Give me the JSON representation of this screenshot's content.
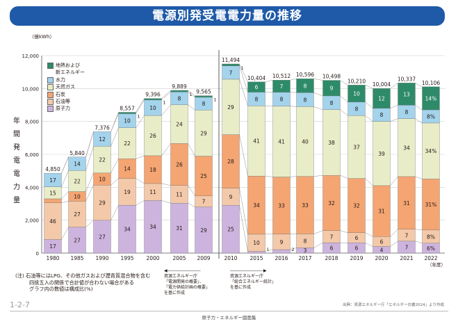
{
  "header": {
    "title": "電源別発受電電力量の推移"
  },
  "chart_data": {
    "type": "bar",
    "stacked": true,
    "unit_label": "（億kWh）",
    "ylabel_vertical": [
      "年",
      "間",
      "発",
      "電",
      "電",
      "力",
      "量"
    ],
    "xlabel": "（年度）",
    "ylim": [
      0,
      12000
    ],
    "yticks": [
      "0",
      "2,000",
      "4,000",
      "6,000",
      "8,000",
      "10,000",
      "12,000"
    ],
    "grid": true,
    "legend_position": "top-left",
    "series": [
      {
        "key": "nuclear",
        "name": "原子力",
        "color": "#cdb4de"
      },
      {
        "key": "oil",
        "name": "石油等",
        "color": "#f3c9aa"
      },
      {
        "key": "coal",
        "name": "石炭",
        "color": "#f4a572"
      },
      {
        "key": "gas",
        "name": "天然ガス",
        "color": "#e8edc8"
      },
      {
        "key": "hydro",
        "name": "水力",
        "color": "#a4d3ec"
      },
      {
        "key": "geo",
        "name": "地熱および\n新エネルギー",
        "color": "#2e8b6a"
      }
    ],
    "categories": [
      {
        "year": "1980",
        "total": "4,850",
        "parts": [
          17,
          46,
          5,
          15,
          17,
          null
        ],
        "labels": [
          "17",
          "46",
          "5",
          "15",
          "17",
          ""
        ],
        "small": []
      },
      {
        "year": "1985",
        "total": "5,840",
        "parts": [
          27,
          27,
          10,
          22,
          14,
          null
        ],
        "labels": [
          "27",
          "27",
          "10",
          "22",
          "14",
          ""
        ],
        "small": []
      },
      {
        "year": "1990",
        "total": "7,376",
        "parts": [
          27,
          29,
          10,
          22,
          12,
          null
        ],
        "labels": [
          "27",
          "29",
          "10",
          "22",
          "12",
          ""
        ],
        "small": []
      },
      {
        "year": "1995",
        "total": "8,557",
        "parts": [
          34,
          19,
          14,
          22,
          10,
          1
        ],
        "labels": [
          "34",
          "19",
          "14",
          "22",
          "10",
          ""
        ],
        "small": [
          "1"
        ]
      },
      {
        "year": "2000",
        "total": "9,396",
        "parts": [
          34,
          11,
          18,
          26,
          10,
          1
        ],
        "labels": [
          "34",
          "11",
          "18",
          "26",
          "10",
          ""
        ],
        "small": [
          "1"
        ]
      },
      {
        "year": "2005",
        "total": "9,889",
        "parts": [
          31,
          11,
          26,
          24,
          8,
          1
        ],
        "labels": [
          "31",
          "11",
          "26",
          "24",
          "8",
          ""
        ],
        "small": [
          "1"
        ]
      },
      {
        "year": "2009",
        "total": "9,565",
        "parts": [
          29,
          7,
          25,
          29,
          8,
          1
        ],
        "labels": [
          "29",
          "7",
          "25",
          "29",
          "8",
          ""
        ],
        "small": [
          "1"
        ]
      },
      {
        "year": "2010",
        "total": "11,494",
        "parts": [
          25,
          9,
          28,
          29,
          7,
          1
        ],
        "labels": [
          "25",
          "9",
          "28",
          "29",
          "7",
          ""
        ],
        "small": [
          "1"
        ]
      },
      {
        "year": "2015",
        "total": "10,404",
        "parts": [
          1,
          10,
          34,
          41,
          8,
          6
        ],
        "labels": [
          "",
          "10",
          "34",
          "41",
          "8",
          "6"
        ],
        "small": [
          "1"
        ]
      },
      {
        "year": "2016",
        "total": "10,512",
        "parts": [
          2,
          9,
          33,
          41,
          8,
          7
        ],
        "labels": [
          "",
          "9",
          "33",
          "41",
          "8",
          "7"
        ],
        "small": [
          "2"
        ]
      },
      {
        "year": "2017",
        "total": "10,596",
        "parts": [
          3,
          8,
          33,
          40,
          8,
          8
        ],
        "labels": [
          "3",
          "8",
          "33",
          "40",
          "8",
          "8"
        ],
        "small": []
      },
      {
        "year": "2018",
        "total": "10,498",
        "parts": [
          6,
          7,
          32,
          38,
          8,
          9
        ],
        "labels": [
          "6",
          "7",
          "32",
          "38",
          "8",
          "9"
        ],
        "small": []
      },
      {
        "year": "2019",
        "total": "10,210",
        "parts": [
          6,
          6,
          32,
          37,
          8,
          10
        ],
        "labels": [
          "6",
          "6",
          "32",
          "37",
          "8",
          "10"
        ],
        "small": []
      },
      {
        "year": "2020",
        "total": "10,004",
        "parts": [
          4,
          6,
          31,
          39,
          8,
          12
        ],
        "labels": [
          "4",
          "6",
          "31",
          "39",
          "8",
          "12"
        ],
        "small": []
      },
      {
        "year": "2021",
        "total": "10,337",
        "parts": [
          7,
          7,
          31,
          34,
          8,
          13
        ],
        "labels": [
          "7",
          "7",
          "31",
          "34",
          "8",
          "13"
        ],
        "small": []
      },
      {
        "year": "2022",
        "total": "10,106",
        "parts": [
          6,
          8,
          31,
          34,
          8,
          14
        ],
        "labels": [
          "6%",
          "8%",
          "31%",
          "34%",
          "8%",
          "14%"
        ],
        "small": []
      }
    ]
  },
  "notes": {
    "line1": "(注) 石油等にはLPG、その他ガスおよび瀝青質混合物を含む",
    "line2": "四捨五入の関係で合計値が合わない場合がある",
    "line3": "グラフ内の数値は構成比(%)"
  },
  "source_left": {
    "arrow": "◀――――――――",
    "l1": "資源エネルギー庁",
    "l2": "「電源開発の概要」、",
    "l3": "「電力供給計画の概要」",
    "l4": "を基に作成"
  },
  "source_right": {
    "arrow": "――――――――▶",
    "l1": "資源エネルギー庁",
    "l2": "「総合エネルギー統計」",
    "l3": "を基に作成"
  },
  "page_id": "1-2-7",
  "credit": "出典：資源エネルギー庁「エネルギー白書2024」より作成",
  "footer": "原子力・エネルギー図面集"
}
